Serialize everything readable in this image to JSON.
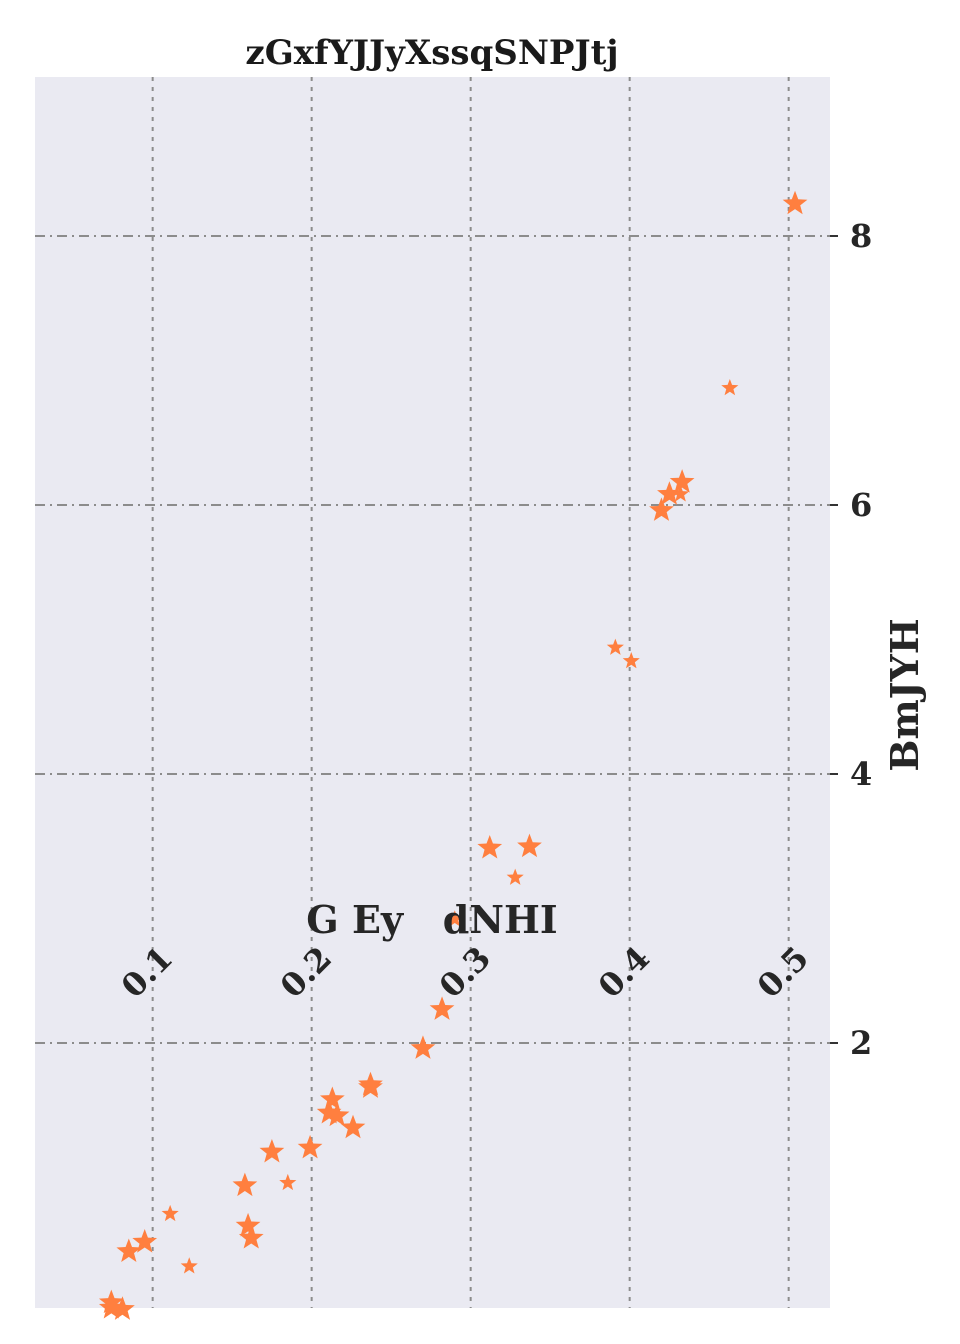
{
  "chart_data": {
    "type": "scatter",
    "title": "zGxfYJJyXssqSNPJtj",
    "xlabel": "G Ey   dNHI",
    "ylabel": "BmJYH",
    "xlim": [
      0.026,
      0.526
    ],
    "ylim": [
      -0.98,
      8.2
    ],
    "x_ticks": [
      0.1,
      0.2,
      0.3,
      0.4,
      0.5
    ],
    "x_tick_labels": [
      "0.1",
      "0.2",
      "0.3",
      "0.4",
      "0.5"
    ],
    "y_ticks": [
      2,
      4,
      6,
      8
    ],
    "y_tick_labels": [
      "2",
      "4",
      "6",
      "8"
    ],
    "grid": true,
    "marker": "star",
    "colors": {
      "points": "#ff7f3f",
      "plot_background": "#eaeaf2",
      "grid": "#8c8c8c"
    },
    "series": [
      {
        "points": [
          {
            "x": 0.074,
            "y": 0.07,
            "s": "l"
          },
          {
            "x": 0.081,
            "y": 0.02,
            "s": "l"
          },
          {
            "x": 0.074,
            "y": 0.03,
            "s": "l"
          },
          {
            "x": 0.085,
            "y": 0.45,
            "s": "l"
          },
          {
            "x": 0.095,
            "y": 0.52,
            "s": "l"
          },
          {
            "x": 0.111,
            "y": 0.73,
            "s": "s"
          },
          {
            "x": 0.123,
            "y": 0.34,
            "s": "s"
          },
          {
            "x": 0.158,
            "y": 0.94,
            "s": "l"
          },
          {
            "x": 0.16,
            "y": 0.64,
            "s": "l"
          },
          {
            "x": 0.162,
            "y": 0.55,
            "s": "l"
          },
          {
            "x": 0.175,
            "y": 1.19,
            "s": "l"
          },
          {
            "x": 0.185,
            "y": 0.96,
            "s": "s"
          },
          {
            "x": 0.199,
            "y": 1.22,
            "s": "l"
          },
          {
            "x": 0.211,
            "y": 1.48,
            "s": "l"
          },
          {
            "x": 0.213,
            "y": 1.58,
            "s": "l"
          },
          {
            "x": 0.216,
            "y": 1.46,
            "s": "l"
          },
          {
            "x": 0.226,
            "y": 1.37,
            "s": "l"
          },
          {
            "x": 0.237,
            "y": 1.67,
            "s": "l"
          },
          {
            "x": 0.237,
            "y": 1.69,
            "s": "l"
          },
          {
            "x": 0.27,
            "y": 1.96,
            "s": "l"
          },
          {
            "x": 0.282,
            "y": 2.25,
            "s": "l"
          },
          {
            "x": 0.29,
            "y": 2.92,
            "s": "s"
          },
          {
            "x": 0.312,
            "y": 3.45,
            "s": "l"
          },
          {
            "x": 0.328,
            "y": 3.23,
            "s": "s"
          },
          {
            "x": 0.337,
            "y": 3.46,
            "s": "l"
          },
          {
            "x": 0.391,
            "y": 4.94,
            "s": "s"
          },
          {
            "x": 0.401,
            "y": 4.84,
            "s": "s"
          },
          {
            "x": 0.42,
            "y": 5.96,
            "s": "l"
          },
          {
            "x": 0.425,
            "y": 6.08,
            "s": "l"
          },
          {
            "x": 0.432,
            "y": 6.08,
            "s": "s"
          },
          {
            "x": 0.433,
            "y": 6.17,
            "s": "l"
          },
          {
            "x": 0.463,
            "y": 6.87,
            "s": "s"
          },
          {
            "x": 0.504,
            "y": 8.24,
            "s": "l"
          }
        ]
      }
    ]
  }
}
